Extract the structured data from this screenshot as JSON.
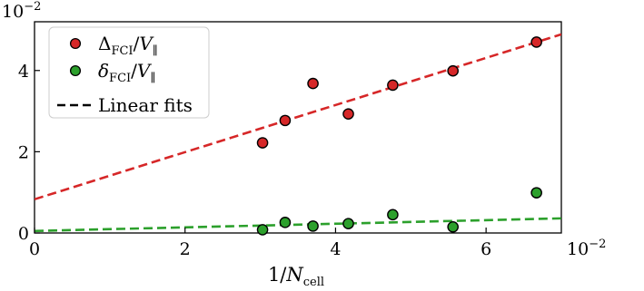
{
  "chart_data": {
    "type": "scatter",
    "x_scale_label": "10",
    "x_scale_exp": "−2",
    "y_scale_label": "10",
    "y_scale_exp": "−2",
    "xlabel": {
      "main": "1/N",
      "sub": "cell"
    },
    "xlim": [
      0,
      7
    ],
    "ylim": [
      0,
      5.2
    ],
    "x_ticks": [
      0,
      2,
      4,
      6
    ],
    "x_tick_labels": [
      "0",
      "2",
      "4",
      "6"
    ],
    "y_ticks": [
      0,
      2,
      4
    ],
    "y_tick_labels": [
      "0",
      "2",
      "4"
    ],
    "grid": false,
    "legend_position": "top-left",
    "series": [
      {
        "name": "Δ_FCI/V_∥",
        "legend": {
          "main": "Δ",
          "sub": "FCI",
          "rest": "/V",
          "rest_sub": "∥"
        },
        "kind": "scatter",
        "color": "#d62728",
        "x": [
          3.03,
          3.33,
          3.7,
          4.17,
          4.76,
          5.56,
          6.67
        ],
        "y": [
          2.22,
          2.77,
          3.68,
          2.93,
          3.64,
          3.99,
          4.7
        ]
      },
      {
        "name": "δ_FCI/V_∥",
        "legend": {
          "main": "δ",
          "sub": "FCI",
          "rest": "/V",
          "rest_sub": "∥"
        },
        "kind": "scatter",
        "color": "#2ca02c",
        "x": [
          3.03,
          3.33,
          3.7,
          4.17,
          4.76,
          5.56,
          6.67
        ],
        "y": [
          0.08,
          0.26,
          0.17,
          0.23,
          0.45,
          0.15,
          0.99
        ]
      },
      {
        "name": "Linear fits",
        "kind": "fit",
        "color": "#d62728",
        "x": [
          0,
          7
        ],
        "y": [
          0.83,
          4.89
        ]
      },
      {
        "kind": "fit",
        "color": "#2ca02c",
        "x": [
          0,
          7
        ],
        "y": [
          0.05,
          0.36
        ]
      }
    ],
    "legend_fit_label": "Linear fits"
  }
}
